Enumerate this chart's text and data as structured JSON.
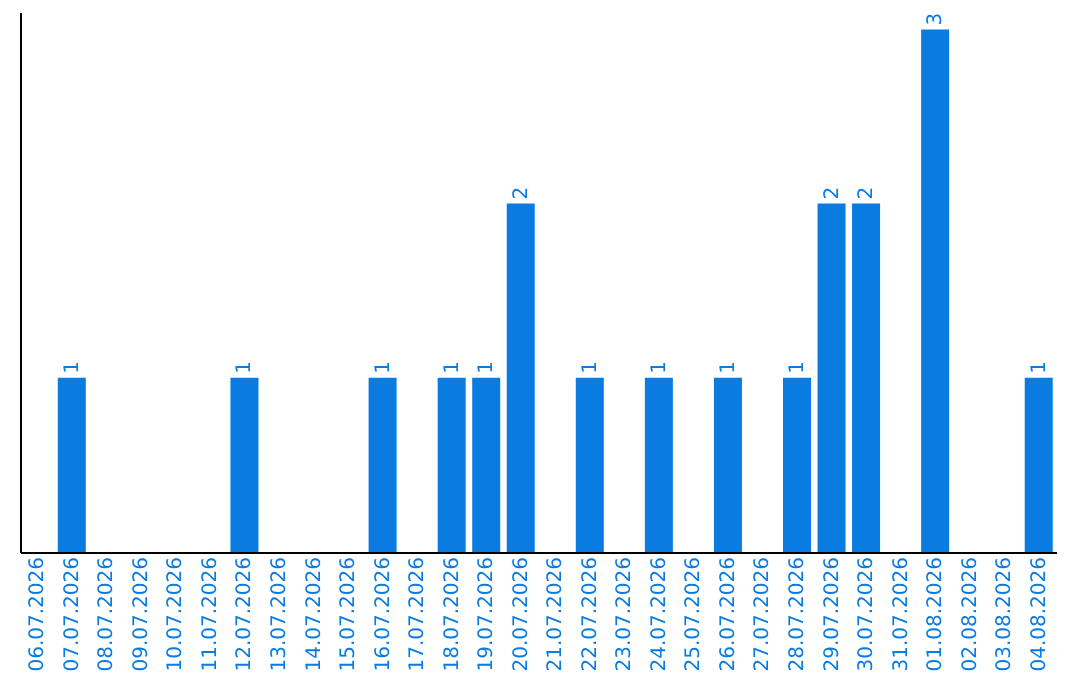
{
  "chart_data": {
    "type": "bar",
    "categories": [
      "06.07.2026",
      "07.07.2026",
      "08.07.2026",
      "09.07.2026",
      "10.07.2026",
      "11.07.2026",
      "12.07.2026",
      "13.07.2026",
      "14.07.2026",
      "15.07.2026",
      "16.07.2026",
      "17.07.2026",
      "18.07.2026",
      "19.07.2026",
      "20.07.2026",
      "21.07.2026",
      "22.07.2026",
      "23.07.2026",
      "24.07.2026",
      "25.07.2026",
      "26.07.2026",
      "27.07.2026",
      "28.07.2026",
      "29.07.2026",
      "30.07.2026",
      "31.07.2026",
      "01.08.2026",
      "02.08.2026",
      "03.08.2026",
      "04.08.2026"
    ],
    "values": [
      0,
      1,
      0,
      0,
      0,
      0,
      1,
      0,
      0,
      0,
      1,
      0,
      1,
      1,
      2,
      0,
      1,
      0,
      1,
      0,
      1,
      0,
      1,
      2,
      2,
      0,
      3,
      0,
      0,
      1
    ],
    "value_labels": [
      null,
      "1",
      null,
      null,
      null,
      null,
      "1",
      null,
      null,
      null,
      "1",
      null,
      "1",
      "1",
      "2",
      null,
      "1",
      null,
      "1",
      null,
      "1",
      null,
      "1",
      "2",
      "2",
      null,
      "3",
      null,
      null,
      "1"
    ],
    "color": "#0a7be0",
    "ylim": [
      0,
      3.1
    ],
    "grid": false
  }
}
